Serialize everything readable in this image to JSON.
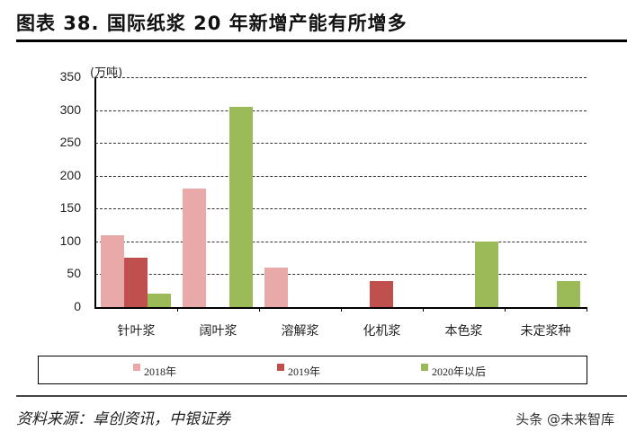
{
  "title": "图表 38. 国际纸浆 20 年新增产能有所增多",
  "unit": "(万吨)",
  "source": "资料来源：卓创资讯，中银证券",
  "watermark": "头条 @未来智库",
  "colors": {
    "2018": "#e8a9a9",
    "2019": "#c0504d",
    "2020": "#9bbb59"
  },
  "legend": [
    "2018年",
    "2019年",
    "2020年以后"
  ],
  "yticks": [
    "350",
    "300",
    "250",
    "200",
    "150",
    "100",
    "50",
    "0"
  ],
  "chart_data": {
    "type": "bar",
    "title": "图表 38. 国际纸浆 20 年新增产能有所增多",
    "ylabel": "(万吨)",
    "xlabel": "",
    "ylim": [
      0,
      350
    ],
    "categories": [
      "针叶浆",
      "阔叶浆",
      "溶解浆",
      "化机浆",
      "本色浆",
      "未定浆种"
    ],
    "series": [
      {
        "name": "2018年",
        "values": [
          110,
          180,
          60,
          0,
          0,
          0
        ]
      },
      {
        "name": "2019年",
        "values": [
          75,
          0,
          0,
          40,
          0,
          0
        ]
      },
      {
        "name": "2020年以后",
        "values": [
          20,
          305,
          0,
          0,
          100,
          40
        ]
      }
    ],
    "legend_position": "bottom",
    "grid": true
  }
}
